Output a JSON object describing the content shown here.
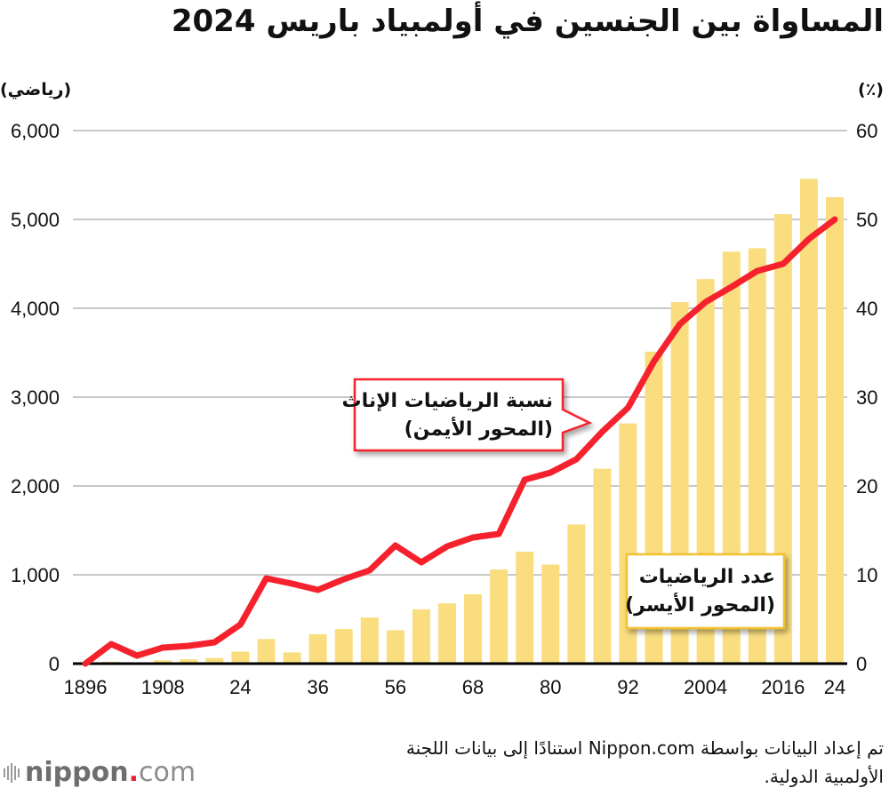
{
  "title": "المساواة بين الجنسين في أولمبياد باريس 2024",
  "units": {
    "left": "(رياضي)",
    "right": "(٪)"
  },
  "callouts": {
    "line": {
      "lines": [
        "نسبة الرياضيات الإناث",
        "(المحور الأيمن)"
      ]
    },
    "bars": {
      "lines": [
        "عدد الرياضيات",
        "(المحور الأيسر)"
      ]
    }
  },
  "source": {
    "lines": [
      "تم إعداد البيانات بواسطة Nippon.com استنادًا إلى بيانات اللجنة",
      "الأولمبية الدولية."
    ]
  },
  "logo": {
    "name": "nippon",
    "dot": ".",
    "suffix": "com"
  },
  "colors": {
    "bars": "#F9DD7F",
    "line": "#F5222D",
    "grid": "#C8C8C8",
    "callout_red": "#F5222D",
    "callout_yellow": "#F2C12E"
  },
  "chart_data": {
    "type": "bar",
    "title": "المساواة بين الجنسين في أولمبياد باريس 2024",
    "xlabel": "",
    "categories": [
      1896,
      1900,
      1904,
      1908,
      1912,
      1920,
      1924,
      1928,
      1932,
      1936,
      1948,
      1952,
      1956,
      1960,
      1964,
      1968,
      1972,
      1976,
      1980,
      1984,
      1988,
      1992,
      1996,
      2000,
      2004,
      2008,
      2012,
      2016,
      2020,
      2024
    ],
    "x_tick_labels": [
      {
        "year": 1896,
        "label": "1896"
      },
      {
        "year": 1908,
        "label": "1908"
      },
      {
        "year": 1924,
        "label": "24"
      },
      {
        "year": 1936,
        "label": "36"
      },
      {
        "year": 1956,
        "label": "56"
      },
      {
        "year": 1968,
        "label": "68"
      },
      {
        "year": 1980,
        "label": "80"
      },
      {
        "year": 1992,
        "label": "92"
      },
      {
        "year": 2004,
        "label": "2004"
      },
      {
        "year": 2016,
        "label": "2016"
      },
      {
        "year": 2024,
        "label": "24"
      }
    ],
    "left_axis": {
      "label": "(رياضي)",
      "ylim": [
        0,
        6000
      ],
      "ticks": [
        "0",
        "1,000",
        "2,000",
        "3,000",
        "4,000",
        "5,000",
        "6,000"
      ],
      "tick_values": [
        0,
        1000,
        2000,
        3000,
        4000,
        5000,
        6000
      ]
    },
    "right_axis": {
      "label": "(٪)",
      "ylim": [
        0,
        60
      ],
      "ticks": [
        "0",
        "10",
        "20",
        "30",
        "40",
        "50",
        "60"
      ],
      "tick_values": [
        0,
        10,
        20,
        30,
        40,
        50,
        60
      ]
    },
    "grid": true,
    "series": [
      {
        "name": "عدد الرياضيات (المحور الأيسر)",
        "type": "bar",
        "axis": "left",
        "values": [
          0,
          22,
          6,
          37,
          48,
          63,
          135,
          277,
          126,
          331,
          390,
          519,
          376,
          611,
          678,
          781,
          1059,
          1260,
          1115,
          1566,
          2194,
          2704,
          3512,
          4069,
          4329,
          4637,
          4676,
          5059,
          5457,
          5250
        ]
      },
      {
        "name": "نسبة الرياضيات الإناث (المحور الأيمن)",
        "type": "line",
        "axis": "right",
        "values": [
          0,
          2.2,
          0.9,
          1.8,
          2.0,
          2.4,
          4.4,
          9.6,
          9.0,
          8.3,
          9.5,
          10.5,
          13.3,
          11.4,
          13.2,
          14.2,
          14.6,
          20.7,
          21.5,
          23.0,
          26.1,
          28.8,
          34.0,
          38.2,
          40.7,
          42.4,
          44.2,
          45.0,
          47.8,
          50.0
        ]
      }
    ]
  }
}
